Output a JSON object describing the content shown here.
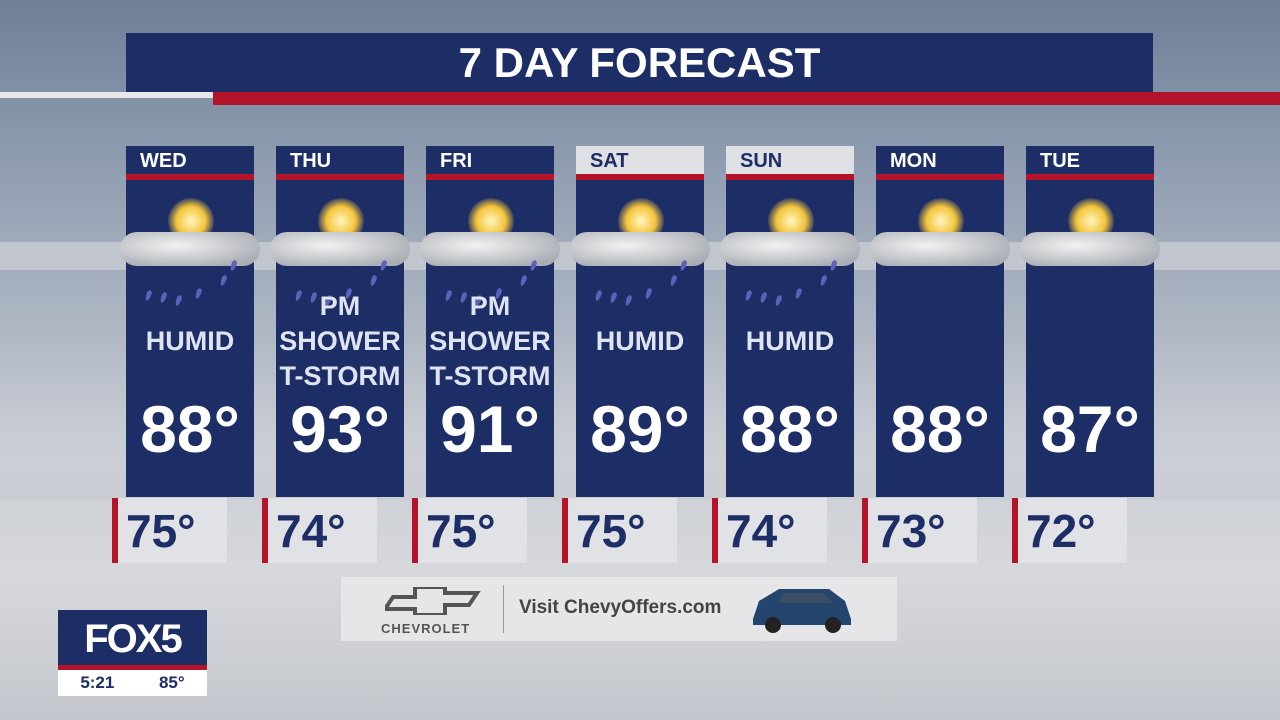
{
  "title": "7 DAY FORECAST",
  "colors": {
    "navy": "#1d2d66",
    "red": "#b3142a"
  },
  "days": [
    {
      "day": "WED",
      "weekend": false,
      "condition": [
        "HUMID"
      ],
      "icon": "sun-cloud-rain-icon",
      "high": "88°",
      "low": "75°"
    },
    {
      "day": "THU",
      "weekend": false,
      "condition": [
        "PM",
        "SHOWER",
        "T-STORM"
      ],
      "icon": "sun-cloud-rain-icon",
      "high": "93°",
      "low": "74°"
    },
    {
      "day": "FRI",
      "weekend": false,
      "condition": [
        "PM",
        "SHOWER",
        "T-STORM"
      ],
      "icon": "sun-cloud-rain-icon",
      "high": "91°",
      "low": "75°"
    },
    {
      "day": "SAT",
      "weekend": true,
      "condition": [
        "HUMID"
      ],
      "icon": "sun-cloud-rain-icon",
      "high": "89°",
      "low": "75°"
    },
    {
      "day": "SUN",
      "weekend": true,
      "condition": [
        "HUMID"
      ],
      "icon": "sun-cloud-rain-icon",
      "high": "88°",
      "low": "74°"
    },
    {
      "day": "MON",
      "weekend": false,
      "condition": [],
      "icon": "partly-sunny-icon",
      "high": "88°",
      "low": "73°"
    },
    {
      "day": "TUE",
      "weekend": false,
      "condition": [],
      "icon": "partly-sunny-icon",
      "high": "87°",
      "low": "72°"
    }
  ],
  "ad": {
    "brand": "CHEVROLET",
    "text": "Visit ChevyOffers.com"
  },
  "station": {
    "logo": "FOX5",
    "time": "5:21",
    "temp": "85°"
  }
}
